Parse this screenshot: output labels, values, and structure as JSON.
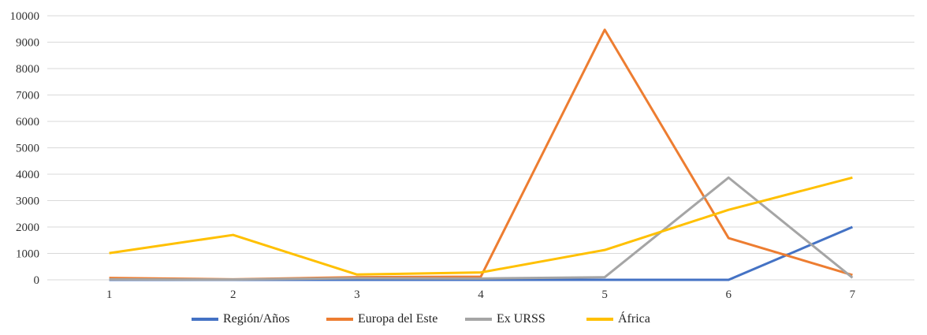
{
  "chart_data": {
    "type": "line",
    "title": "",
    "xlabel": "",
    "ylabel": "",
    "x": [
      1,
      2,
      3,
      4,
      5,
      6,
      7
    ],
    "ylim": [
      0,
      10000
    ],
    "yticks": [
      0,
      1000,
      2000,
      3000,
      4000,
      5000,
      6000,
      7000,
      8000,
      9000,
      10000
    ],
    "grid": "horizontal",
    "legend_position": "bottom",
    "series": [
      {
        "name": "Región/Años",
        "color": "#4472C4",
        "values": [
          0,
          0,
          0,
          0,
          0,
          0,
          2000
        ]
      },
      {
        "name": "Europa del Este",
        "color": "#ED7D31",
        "values": [
          70,
          20,
          100,
          120,
          9470,
          1580,
          180
        ]
      },
      {
        "name": "Ex URSS",
        "color": "#A5A5A5",
        "values": [
          20,
          10,
          60,
          50,
          100,
          3870,
          80
        ]
      },
      {
        "name": "África",
        "color": "#FFC000",
        "values": [
          1010,
          1700,
          200,
          280,
          1130,
          2650,
          3870
        ]
      }
    ]
  }
}
